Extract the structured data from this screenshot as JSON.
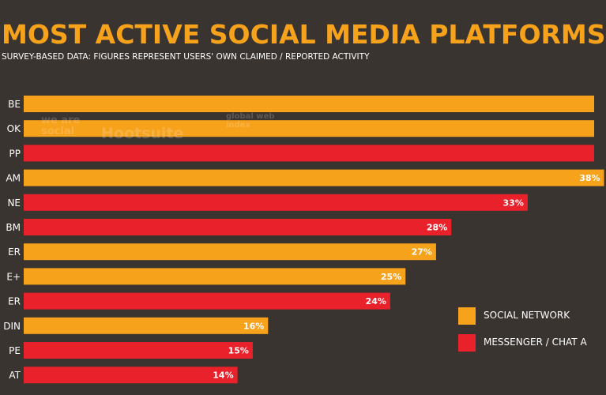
{
  "title": "MOST ACTIVE SOCIAL MEDIA PLATFORMS",
  "subtitle": "SURVEY-BASED DATA: FIGURES REPRESENT USERS' OWN CLAIMED / REPORTED ACTIVITY",
  "watermarks": {
    "we_are_social": "we are social",
    "hootsuite": "Hootsuite",
    "gwi": "global web index"
  },
  "legend": [
    {
      "label": "SOCIAL NETWORK",
      "color": "#f7a21b"
    },
    {
      "label": "MESSENGER / CHAT A",
      "color": "#e8212a"
    }
  ],
  "colors": {
    "social_network": "#f7a21b",
    "messenger": "#e8212a",
    "background": "#3a3431"
  },
  "chart_data": {
    "type": "bar",
    "orientation": "horizontal",
    "categories": [
      "BE",
      "OK",
      "PP",
      "AM",
      "NE",
      "BM",
      "ER",
      "E+",
      "ER",
      "DIN",
      "PE",
      "AT"
    ],
    "values": [
      null,
      null,
      null,
      38,
      33,
      28,
      27,
      25,
      24,
      16,
      15,
      14
    ],
    "value_labels": [
      "",
      "",
      "",
      "38%",
      "33%",
      "28%",
      "27%",
      "25%",
      "24%",
      "16%",
      "15%",
      "14%"
    ],
    "bar_types": [
      "social",
      "social",
      "messenger",
      "social",
      "messenger",
      "messenger",
      "social",
      "social",
      "messenger",
      "social",
      "messenger",
      "messenger"
    ],
    "xlim": [
      0,
      40
    ]
  }
}
